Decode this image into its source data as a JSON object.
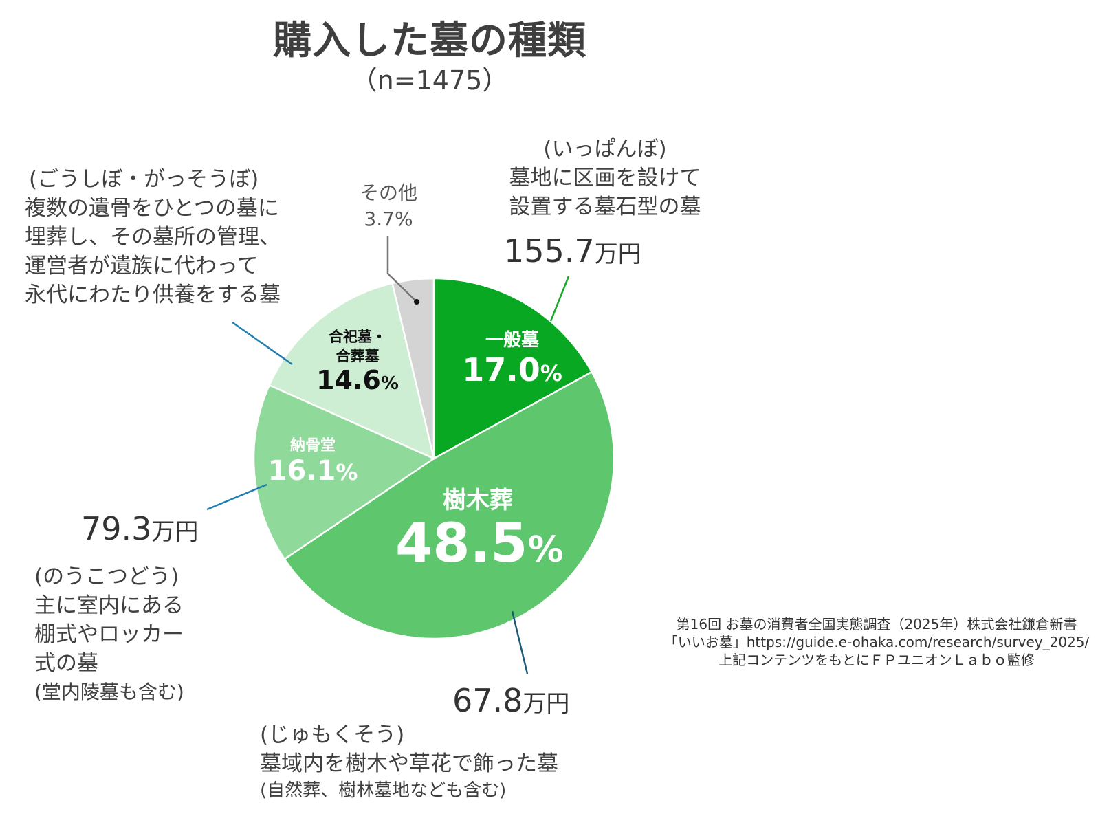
{
  "chart_data": {
    "type": "pie",
    "title": "購入した墓の種類",
    "subtitle": "（n=1475）",
    "start_angle_deg": 0,
    "direction": "clockwise",
    "slices": [
      {
        "name": "一般墓",
        "value": 17.0,
        "pct_label": "17.0",
        "color": "#08A822",
        "label_color": "#ffffff",
        "reading": "(いっぱんぼ)",
        "description": [
          "墓地に区画を設けて",
          "設置する墓石型の墓"
        ],
        "price": "155.7",
        "price_unit": "万円",
        "leader_color": "#18A82A"
      },
      {
        "name": "樹木葬",
        "value": 48.5,
        "pct_label": "48.5",
        "color": "#5EC76E",
        "label_color": "#ffffff",
        "reading": "(じゅもくそう)",
        "description": [
          "墓域内を樹木や草花で飾った墓",
          "(自然葬、樹林墓地なども含む)"
        ],
        "price": "67.8",
        "price_unit": "万円",
        "leader_color": "#1B5A78"
      },
      {
        "name": "納骨堂",
        "value": 16.1,
        "pct_label": "16.1",
        "color": "#8FD99A",
        "label_color": "#ffffff",
        "reading": "(のうこつどう)",
        "description": [
          "主に室内にある",
          "棚式やロッカー",
          "式の墓",
          "(堂内陵墓も含む)"
        ],
        "price": "79.3",
        "price_unit": "万円",
        "leader_color": "#1F7FB0"
      },
      {
        "name": "合祀墓・合葬墓",
        "name_lines": [
          "合祀墓・",
          "合葬墓"
        ],
        "value": 14.6,
        "pct_label": "14.6",
        "color": "#CDEED2",
        "label_color": "#111111",
        "reading": "(ごうしぼ・がっそうぼ)",
        "description": [
          "複数の遺骨をひとつの墓に",
          "埋葬し、その墓所の管理、",
          "運営者が遺族に代わって",
          "永代にわたり供養をする墓"
        ],
        "leader_color": "#1F7FB0"
      },
      {
        "name": "その他",
        "value": 3.7,
        "pct_label": "3.7%",
        "color": "#D4D4D4",
        "label_color": "#555555",
        "leader_color": "#777777"
      }
    ],
    "pct_sign": "%",
    "legend": "none"
  },
  "source_note": [
    "第16回 お墓の消費者全国実態調査（2025年）株式会社鎌倉新書",
    "「いいお墓」https://guide.e-ohaka.com/research/survey_2025/",
    "上記コンテンツをもとにＦＰユニオンＬａｂｏ監修"
  ]
}
